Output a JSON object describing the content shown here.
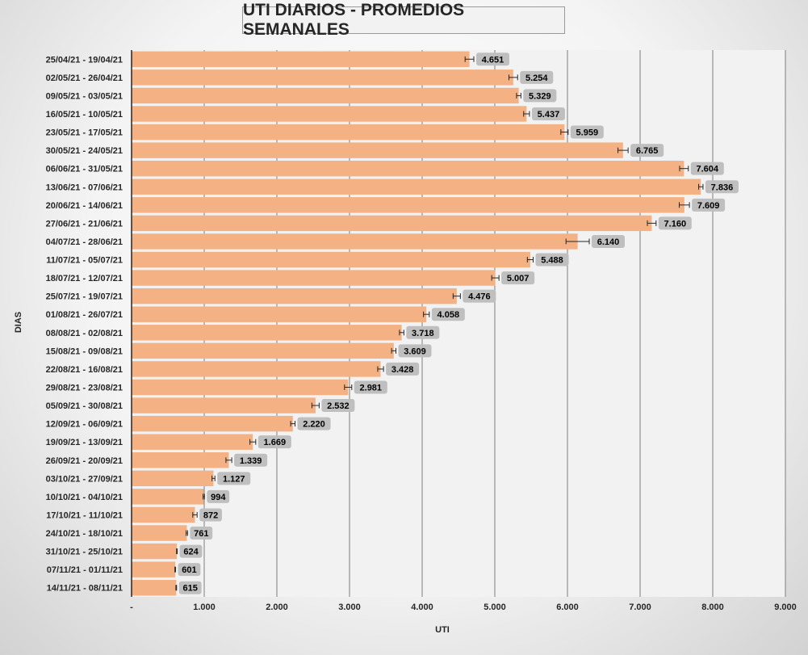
{
  "chart_data": {
    "type": "bar",
    "orientation": "horizontal",
    "title": "UTI DIARIOS - PROMEDIOS SEMANALES",
    "xlabel": "UTI",
    "ylabel": "DIAS",
    "xlim": [
      0,
      9000
    ],
    "x_ticks": [
      0,
      1000,
      2000,
      3000,
      4000,
      5000,
      6000,
      7000,
      8000,
      9000
    ],
    "x_tick_labels": [
      "-",
      "1.000",
      "2.000",
      "3.000",
      "4.000",
      "5.000",
      "6.000",
      "7.000",
      "8.000",
      "9.000"
    ],
    "grid": "vertical",
    "error_bars": true,
    "categories": [
      "25/04/21 - 19/04/21",
      "02/05/21 - 26/04/21",
      "09/05/21 - 03/05/21",
      "16/05/21 - 10/05/21",
      "23/05/21 - 17/05/21",
      "30/05/21 - 24/05/21",
      "06/06/21 - 31/05/21",
      "13/06/21 - 07/06/21",
      "20/06/21 - 14/06/21",
      "27/06/21 - 21/06/21",
      "04/07/21 - 28/06/21",
      "11/07/21 - 05/07/21",
      "18/07/21 - 12/07/21",
      "25/07/21 - 19/07/21",
      "01/08/21 - 26/07/21",
      "08/08/21 - 02/08/21",
      "15/08/21 - 09/08/21",
      "22/08/21 - 16/08/21",
      "29/08/21 - 23/08/21",
      "05/09/21 - 30/08/21",
      "12/09/21 - 06/09/21",
      "19/09/21 - 13/09/21",
      "26/09/21 - 20/09/21",
      "03/10/21 - 27/09/21",
      "10/10/21 - 04/10/21",
      "17/10/21 - 11/10/21",
      "24/10/21 - 18/10/21",
      "31/10/21 - 25/10/21",
      "07/11/21 - 01/11/21",
      "14/11/21 - 08/11/21"
    ],
    "values": [
      4651,
      5254,
      5329,
      5437,
      5959,
      6765,
      7604,
      7836,
      7609,
      7160,
      6140,
      5488,
      5007,
      4476,
      4058,
      3718,
      3609,
      3428,
      2981,
      2532,
      2220,
      1669,
      1339,
      1127,
      994,
      872,
      761,
      624,
      601,
      615
    ],
    "value_labels": [
      "4.651",
      "5.254",
      "5.329",
      "5.437",
      "5.959",
      "6.765",
      "7.604",
      "7.836",
      "7.609",
      "7.160",
      "6.140",
      "5.488",
      "5.007",
      "4.476",
      "4.058",
      "3.718",
      "3.609",
      "3.428",
      "2.981",
      "2.532",
      "2.220",
      "1.669",
      "1.339",
      "1.127",
      "994",
      "872",
      "761",
      "624",
      "601",
      "615"
    ],
    "error": [
      60,
      60,
      30,
      40,
      50,
      70,
      60,
      30,
      70,
      60,
      160,
      40,
      50,
      50,
      40,
      30,
      30,
      40,
      50,
      50,
      30,
      40,
      40,
      20,
      10,
      30,
      10,
      5,
      5,
      5
    ],
    "colors": {
      "bar": "#f4b183",
      "plot_bg": "#f2f2f2",
      "grid": "#7f7f7f",
      "label_bg": "#bfbfbf",
      "text": "#262626"
    }
  }
}
